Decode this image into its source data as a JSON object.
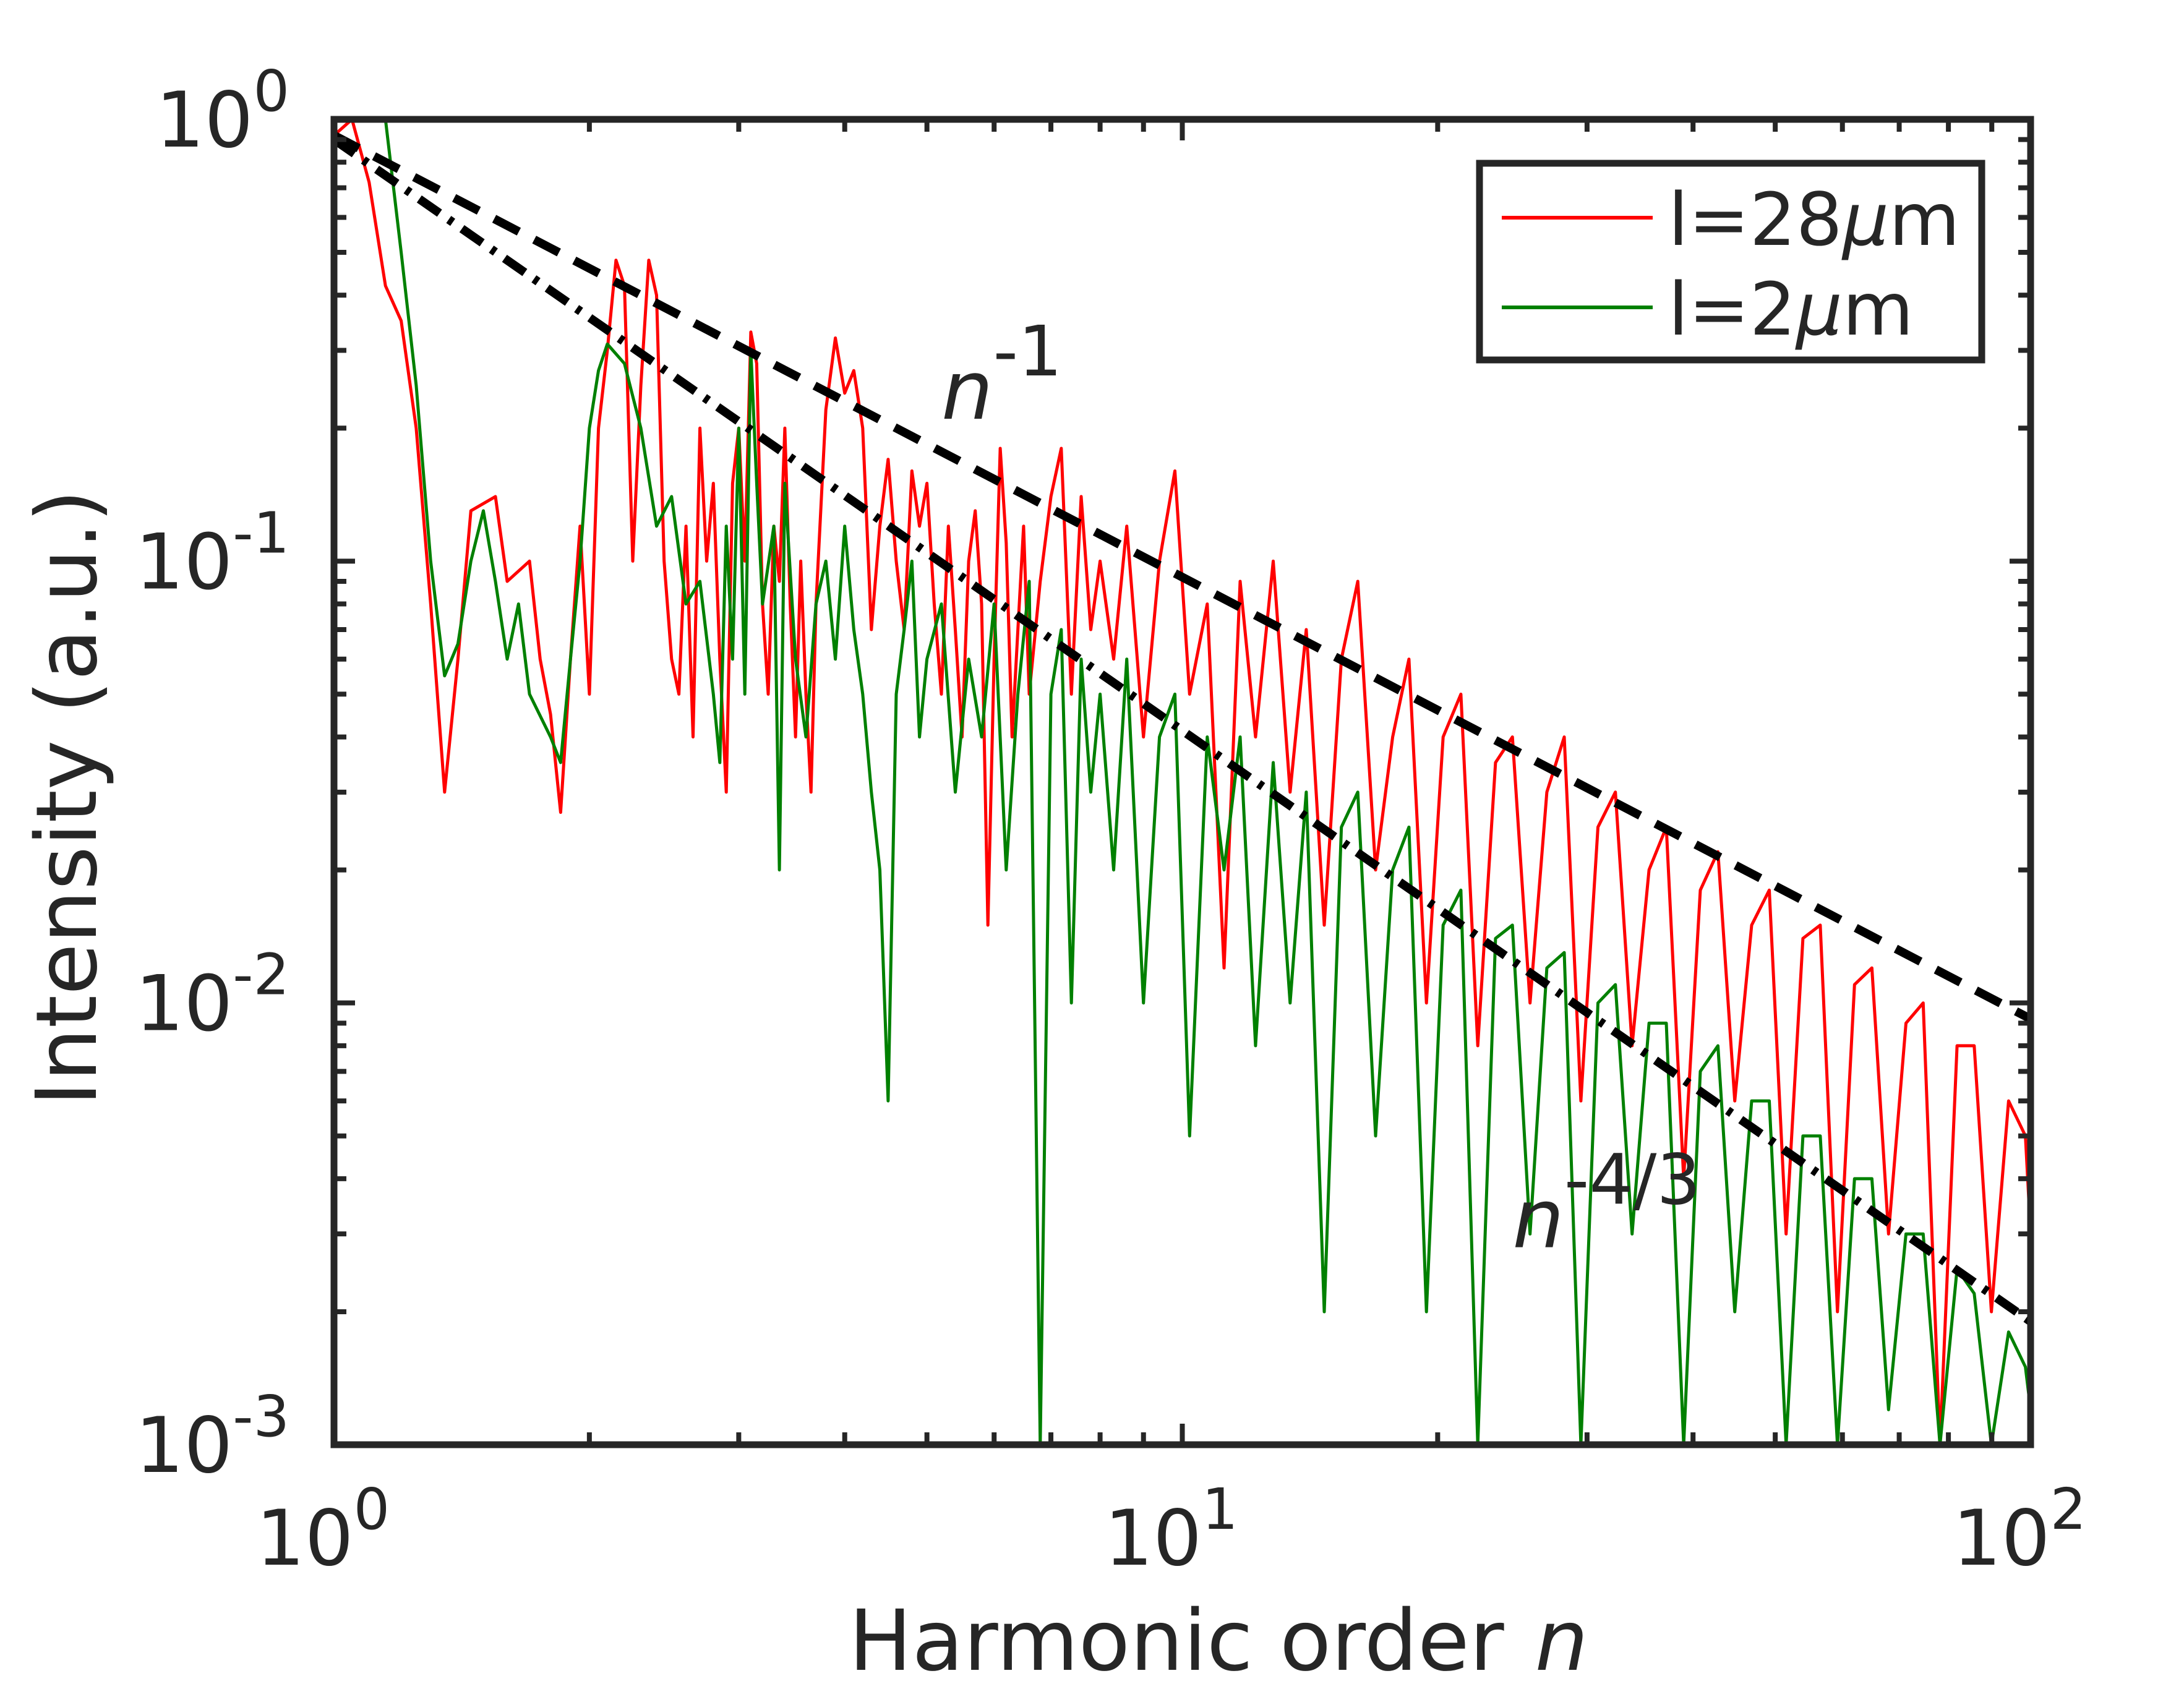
{
  "chart_data": {
    "type": "line",
    "scale": {
      "x": "log",
      "y": "log"
    },
    "xlabel": "Harmonic order",
    "xlabel_var": "n",
    "ylabel": "Intensity (a.u.)",
    "xlim": [
      1,
      100
    ],
    "ylim": [
      0.001,
      1
    ],
    "x_ticks": [
      {
        "value": 1,
        "base": "10",
        "exp": "0"
      },
      {
        "value": 10,
        "base": "10",
        "exp": "1"
      },
      {
        "value": 100,
        "base": "10",
        "exp": "2"
      }
    ],
    "y_ticks": [
      {
        "value": 1,
        "base": "10",
        "exp": "0"
      },
      {
        "value": 0.1,
        "base": "10",
        "exp": "-1"
      },
      {
        "value": 0.01,
        "base": "10",
        "exp": "-2"
      },
      {
        "value": 0.001,
        "base": "10",
        "exp": "-3"
      }
    ],
    "legend_position": "top-right",
    "series": [
      {
        "name": "l=28μm",
        "legend_prefix": "l=28",
        "legend_mu": "μ",
        "legend_suffix": "m",
        "color": "#ff0000",
        "points": [
          [
            1.0,
            0.92
          ],
          [
            1.05,
            1.0
          ],
          [
            1.1,
            0.72
          ],
          [
            1.15,
            0.42
          ],
          [
            1.2,
            0.35
          ],
          [
            1.25,
            0.2
          ],
          [
            1.3,
            0.08
          ],
          [
            1.35,
            0.03
          ],
          [
            1.4,
            0.06
          ],
          [
            1.45,
            0.13
          ],
          [
            1.55,
            0.14
          ],
          [
            1.6,
            0.09
          ],
          [
            1.7,
            0.1
          ],
          [
            1.75,
            0.06
          ],
          [
            1.8,
            0.045
          ],
          [
            1.85,
            0.027
          ],
          [
            1.9,
            0.06
          ],
          [
            1.95,
            0.12
          ],
          [
            2.0,
            0.05
          ],
          [
            2.05,
            0.2
          ],
          [
            2.1,
            0.3
          ],
          [
            2.15,
            0.48
          ],
          [
            2.2,
            0.42
          ],
          [
            2.25,
            0.1
          ],
          [
            2.3,
            0.25
          ],
          [
            2.35,
            0.48
          ],
          [
            2.4,
            0.4
          ],
          [
            2.45,
            0.1
          ],
          [
            2.5,
            0.06
          ],
          [
            2.55,
            0.05
          ],
          [
            2.6,
            0.12
          ],
          [
            2.65,
            0.04
          ],
          [
            2.7,
            0.2
          ],
          [
            2.75,
            0.1
          ],
          [
            2.8,
            0.15
          ],
          [
            2.85,
            0.06
          ],
          [
            2.9,
            0.03
          ],
          [
            2.95,
            0.15
          ],
          [
            3.0,
            0.2
          ],
          [
            3.05,
            0.1
          ],
          [
            3.1,
            0.33
          ],
          [
            3.15,
            0.28
          ],
          [
            3.2,
            0.08
          ],
          [
            3.25,
            0.05
          ],
          [
            3.3,
            0.12
          ],
          [
            3.35,
            0.09
          ],
          [
            3.4,
            0.2
          ],
          [
            3.45,
            0.08
          ],
          [
            3.5,
            0.04
          ],
          [
            3.55,
            0.1
          ],
          [
            3.6,
            0.05
          ],
          [
            3.65,
            0.03
          ],
          [
            3.7,
            0.08
          ],
          [
            3.8,
            0.22
          ],
          [
            3.9,
            0.32
          ],
          [
            4.0,
            0.24
          ],
          [
            4.1,
            0.27
          ],
          [
            4.2,
            0.2
          ],
          [
            4.3,
            0.07
          ],
          [
            4.4,
            0.12
          ],
          [
            4.5,
            0.17
          ],
          [
            4.6,
            0.1
          ],
          [
            4.7,
            0.07
          ],
          [
            4.8,
            0.16
          ],
          [
            4.9,
            0.12
          ],
          [
            5.0,
            0.15
          ],
          [
            5.1,
            0.08
          ],
          [
            5.2,
            0.05
          ],
          [
            5.3,
            0.12
          ],
          [
            5.4,
            0.07
          ],
          [
            5.5,
            0.04
          ],
          [
            5.6,
            0.1
          ],
          [
            5.7,
            0.13
          ],
          [
            5.8,
            0.08
          ],
          [
            5.9,
            0.015
          ],
          [
            6.0,
            0.06
          ],
          [
            6.1,
            0.18
          ],
          [
            6.2,
            0.11
          ],
          [
            6.3,
            0.04
          ],
          [
            6.4,
            0.07
          ],
          [
            6.5,
            0.12
          ],
          [
            6.6,
            0.05
          ],
          [
            6.8,
            0.09
          ],
          [
            7.0,
            0.14
          ],
          [
            7.2,
            0.18
          ],
          [
            7.4,
            0.05
          ],
          [
            7.6,
            0.14
          ],
          [
            7.8,
            0.07
          ],
          [
            8.0,
            0.1
          ],
          [
            8.3,
            0.06
          ],
          [
            8.6,
            0.12
          ],
          [
            9.0,
            0.04
          ],
          [
            9.4,
            0.1
          ],
          [
            9.8,
            0.16
          ],
          [
            10.2,
            0.05
          ],
          [
            10.7,
            0.08
          ],
          [
            11.2,
            0.012
          ],
          [
            11.7,
            0.09
          ],
          [
            12.2,
            0.04
          ],
          [
            12.8,
            0.1
          ],
          [
            13.4,
            0.03
          ],
          [
            14.0,
            0.07
          ],
          [
            14.7,
            0.015
          ],
          [
            15.4,
            0.06
          ],
          [
            16.1,
            0.09
          ],
          [
            16.9,
            0.02
          ],
          [
            17.7,
            0.04
          ],
          [
            18.5,
            0.06
          ],
          [
            19.4,
            0.01
          ],
          [
            20.3,
            0.04
          ],
          [
            21.3,
            0.05
          ],
          [
            22.3,
            0.008
          ],
          [
            23.4,
            0.035
          ],
          [
            24.5,
            0.04
          ],
          [
            25.7,
            0.01
          ],
          [
            26.9,
            0.03
          ],
          [
            28.2,
            0.04
          ],
          [
            29.5,
            0.006
          ],
          [
            30.9,
            0.025
          ],
          [
            32.4,
            0.03
          ],
          [
            33.9,
            0.008
          ],
          [
            35.5,
            0.02
          ],
          [
            37.2,
            0.025
          ],
          [
            39.0,
            0.004
          ],
          [
            40.8,
            0.018
          ],
          [
            42.8,
            0.022
          ],
          [
            44.8,
            0.006
          ],
          [
            46.9,
            0.015
          ],
          [
            49.2,
            0.018
          ],
          [
            51.5,
            0.003
          ],
          [
            53.9,
            0.014
          ],
          [
            56.5,
            0.015
          ],
          [
            59.2,
            0.002
          ],
          [
            62.0,
            0.011
          ],
          [
            65.0,
            0.012
          ],
          [
            68.0,
            0.003
          ],
          [
            71.3,
            0.009
          ],
          [
            74.7,
            0.01
          ],
          [
            78.2,
            0.001
          ],
          [
            81.9,
            0.008
          ],
          [
            85.8,
            0.008
          ],
          [
            89.9,
            0.002
          ],
          [
            94.2,
            0.006
          ],
          [
            98.6,
            0.005
          ],
          [
            100.0,
            0.003
          ]
        ]
      },
      {
        "name": "l=2μm",
        "legend_prefix": "l=2",
        "legend_mu": "μ",
        "legend_suffix": "m",
        "color": "#008000",
        "points": [
          [
            1.15,
            1.0
          ],
          [
            1.2,
            0.5
          ],
          [
            1.25,
            0.25
          ],
          [
            1.3,
            0.1
          ],
          [
            1.35,
            0.055
          ],
          [
            1.4,
            0.065
          ],
          [
            1.45,
            0.1
          ],
          [
            1.5,
            0.13
          ],
          [
            1.55,
            0.09
          ],
          [
            1.6,
            0.06
          ],
          [
            1.65,
            0.08
          ],
          [
            1.7,
            0.05
          ],
          [
            1.8,
            0.04
          ],
          [
            1.85,
            0.035
          ],
          [
            1.9,
            0.06
          ],
          [
            1.95,
            0.1
          ],
          [
            2.0,
            0.2
          ],
          [
            2.05,
            0.27
          ],
          [
            2.1,
            0.31
          ],
          [
            2.2,
            0.28
          ],
          [
            2.3,
            0.2
          ],
          [
            2.4,
            0.12
          ],
          [
            2.5,
            0.14
          ],
          [
            2.6,
            0.08
          ],
          [
            2.7,
            0.09
          ],
          [
            2.8,
            0.05
          ],
          [
            2.85,
            0.035
          ],
          [
            2.9,
            0.12
          ],
          [
            2.95,
            0.06
          ],
          [
            3.0,
            0.2
          ],
          [
            3.05,
            0.05
          ],
          [
            3.1,
            0.3
          ],
          [
            3.15,
            0.15
          ],
          [
            3.2,
            0.08
          ],
          [
            3.3,
            0.12
          ],
          [
            3.35,
            0.02
          ],
          [
            3.4,
            0.15
          ],
          [
            3.5,
            0.06
          ],
          [
            3.6,
            0.04
          ],
          [
            3.7,
            0.08
          ],
          [
            3.8,
            0.1
          ],
          [
            3.9,
            0.06
          ],
          [
            4.0,
            0.12
          ],
          [
            4.1,
            0.07
          ],
          [
            4.2,
            0.05
          ],
          [
            4.3,
            0.03
          ],
          [
            4.4,
            0.02
          ],
          [
            4.5,
            0.006
          ],
          [
            4.6,
            0.05
          ],
          [
            4.7,
            0.07
          ],
          [
            4.8,
            0.1
          ],
          [
            4.9,
            0.04
          ],
          [
            5.0,
            0.06
          ],
          [
            5.2,
            0.08
          ],
          [
            5.4,
            0.03
          ],
          [
            5.6,
            0.06
          ],
          [
            5.8,
            0.04
          ],
          [
            6.0,
            0.08
          ],
          [
            6.2,
            0.02
          ],
          [
            6.4,
            0.05
          ],
          [
            6.6,
            0.09
          ],
          [
            6.8,
            0.001
          ],
          [
            7.0,
            0.05
          ],
          [
            7.2,
            0.07
          ],
          [
            7.4,
            0.01
          ],
          [
            7.6,
            0.06
          ],
          [
            7.8,
            0.03
          ],
          [
            8.0,
            0.05
          ],
          [
            8.3,
            0.02
          ],
          [
            8.6,
            0.06
          ],
          [
            9.0,
            0.01
          ],
          [
            9.4,
            0.04
          ],
          [
            9.8,
            0.05
          ],
          [
            10.2,
            0.005
          ],
          [
            10.7,
            0.04
          ],
          [
            11.2,
            0.02
          ],
          [
            11.7,
            0.04
          ],
          [
            12.2,
            0.008
          ],
          [
            12.8,
            0.035
          ],
          [
            13.4,
            0.01
          ],
          [
            14.0,
            0.03
          ],
          [
            14.7,
            0.002
          ],
          [
            15.4,
            0.025
          ],
          [
            16.1,
            0.03
          ],
          [
            16.9,
            0.005
          ],
          [
            17.7,
            0.02
          ],
          [
            18.5,
            0.025
          ],
          [
            19.4,
            0.002
          ],
          [
            20.3,
            0.015
          ],
          [
            21.3,
            0.018
          ],
          [
            22.3,
            0.001
          ],
          [
            23.4,
            0.014
          ],
          [
            24.5,
            0.015
          ],
          [
            25.7,
            0.003
          ],
          [
            26.9,
            0.012
          ],
          [
            28.2,
            0.013
          ],
          [
            29.5,
            0.001
          ],
          [
            30.9,
            0.01
          ],
          [
            32.4,
            0.011
          ],
          [
            33.9,
            0.003
          ],
          [
            35.5,
            0.009
          ],
          [
            37.2,
            0.009
          ],
          [
            39.0,
            0.001
          ],
          [
            40.8,
            0.007
          ],
          [
            42.8,
            0.008
          ],
          [
            44.8,
            0.002
          ],
          [
            46.9,
            0.006
          ],
          [
            49.2,
            0.006
          ],
          [
            51.5,
            0.001
          ],
          [
            53.9,
            0.005
          ],
          [
            56.5,
            0.005
          ],
          [
            59.2,
            0.001
          ],
          [
            62.0,
            0.004
          ],
          [
            65.0,
            0.004
          ],
          [
            68.0,
            0.0012
          ],
          [
            71.3,
            0.003
          ],
          [
            74.7,
            0.003
          ],
          [
            78.2,
            0.001
          ],
          [
            81.9,
            0.0025
          ],
          [
            85.8,
            0.0022
          ],
          [
            89.9,
            0.001
          ],
          [
            94.2,
            0.0018
          ],
          [
            98.6,
            0.0015
          ],
          [
            100.0,
            0.0012
          ]
        ]
      }
    ],
    "reference_lines": [
      {
        "name": "n^-1",
        "style": "dashed",
        "x": [
          1,
          100
        ],
        "y": [
          0.92,
          0.0092
        ]
      },
      {
        "name": "n^-4/3",
        "style": "dashdot",
        "x": [
          1,
          100
        ],
        "y": [
          0.9,
          0.0019
        ]
      }
    ],
    "annotations": [
      {
        "base": "n",
        "exp": "-1",
        "x": 5.2,
        "y": 0.21
      },
      {
        "base": "n",
        "exp": "-4/3",
        "x": 24.5,
        "y": 0.0028
      }
    ]
  }
}
